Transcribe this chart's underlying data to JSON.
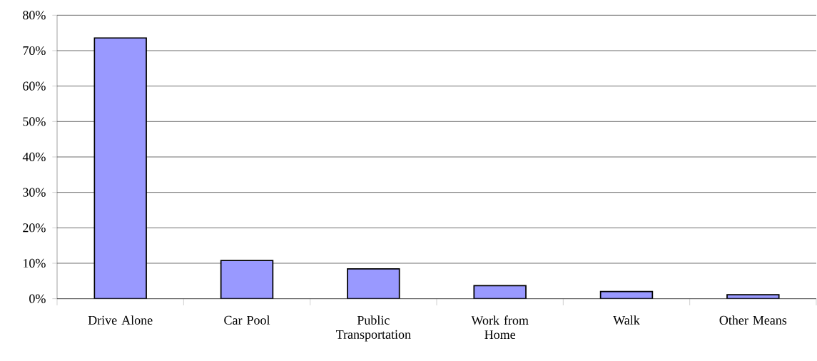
{
  "chart_data": {
    "type": "bar",
    "categories": [
      "Drive Alone",
      "Car Pool",
      "Public Transportation",
      "Work from Home",
      "Walk",
      "Other Means"
    ],
    "values": [
      73.6,
      10.8,
      8.4,
      3.7,
      2.0,
      1.1
    ],
    "color": "#9999ff",
    "ylim": [
      0,
      80
    ],
    "yticks": [
      {
        "value": 0,
        "label": "0%"
      },
      {
        "value": 10,
        "label": "10%"
      },
      {
        "value": 20,
        "label": "20%"
      },
      {
        "value": 30,
        "label": "30%"
      },
      {
        "value": 40,
        "label": "40%"
      },
      {
        "value": 50,
        "label": "50%"
      },
      {
        "value": 60,
        "label": "60%"
      },
      {
        "value": 70,
        "label": "70%"
      },
      {
        "value": 80,
        "label": "80%"
      }
    ],
    "grid": "y"
  }
}
